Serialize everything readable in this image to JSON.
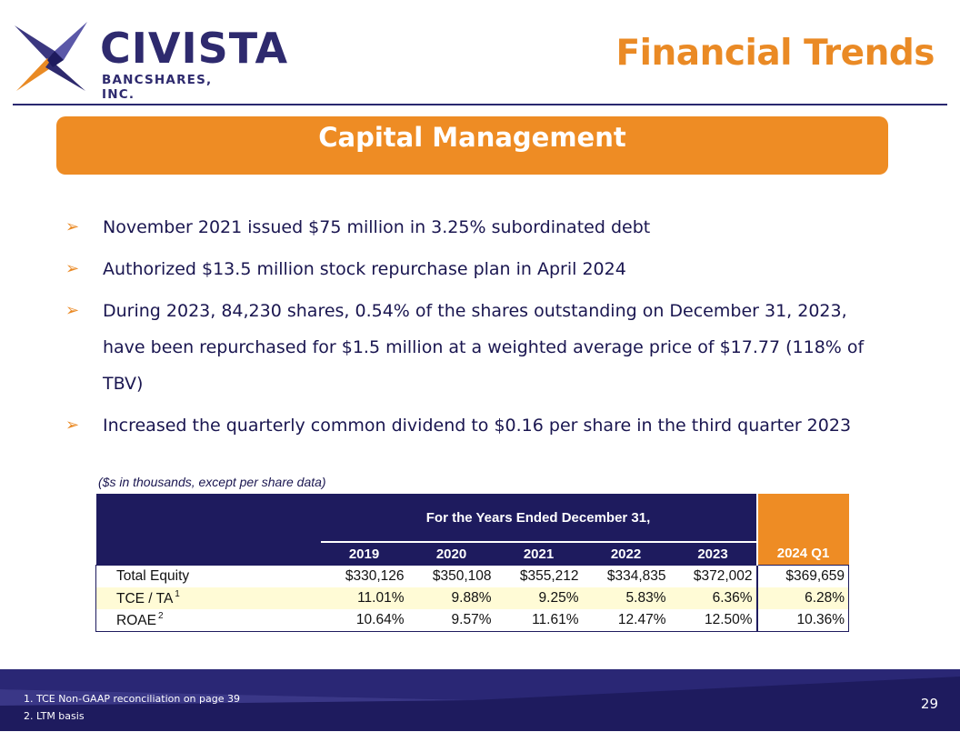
{
  "header": {
    "logo_name": "CIVISTA",
    "logo_sub": "BANCSHARES, INC.",
    "title": "Financial Trends"
  },
  "section": {
    "title": "Capital Management"
  },
  "bullets": [
    "November 2021 issued $75 million in 3.25% subordinated debt",
    "Authorized $13.5 million stock repurchase plan in April 2024",
    "During 2023, 84,230 shares, 0.54% of the shares outstanding on December 31, 2023, have been repurchased for $1.5 million at a weighted average price of $17.77 (118% of TBV)",
    "Increased the quarterly common dividend to $0.16 per share in the third quarter 2023"
  ],
  "table": {
    "note": "($s in thousands, except per share data)",
    "group_header": "For the Years Ended December 31,",
    "columns": [
      "2019",
      "2020",
      "2021",
      "2022",
      "2023",
      "2024 Q1"
    ],
    "rows": [
      {
        "label": "Total Equity",
        "sup": "",
        "values": [
          "$330,126",
          "$350,108",
          "$355,212",
          "$334,835",
          "$372,002",
          "$369,659"
        ]
      },
      {
        "label": "TCE / TA",
        "sup": "1",
        "values": [
          "11.01%",
          "9.88%",
          "9.25%",
          "5.83%",
          "6.36%",
          "6.28%"
        ]
      },
      {
        "label": "ROAE",
        "sup": "2",
        "values": [
          "10.64%",
          "9.57%",
          "11.61%",
          "12.47%",
          "12.50%",
          "10.36%"
        ]
      }
    ]
  },
  "footer": {
    "notes": [
      "1. TCE Non-GAAP reconciliation on page 39",
      "2. LTM basis"
    ],
    "page_number": "29"
  },
  "colors": {
    "navy": "#1e1b5e",
    "orange": "#ee8c24",
    "row_highlight": "#fffbd6"
  }
}
